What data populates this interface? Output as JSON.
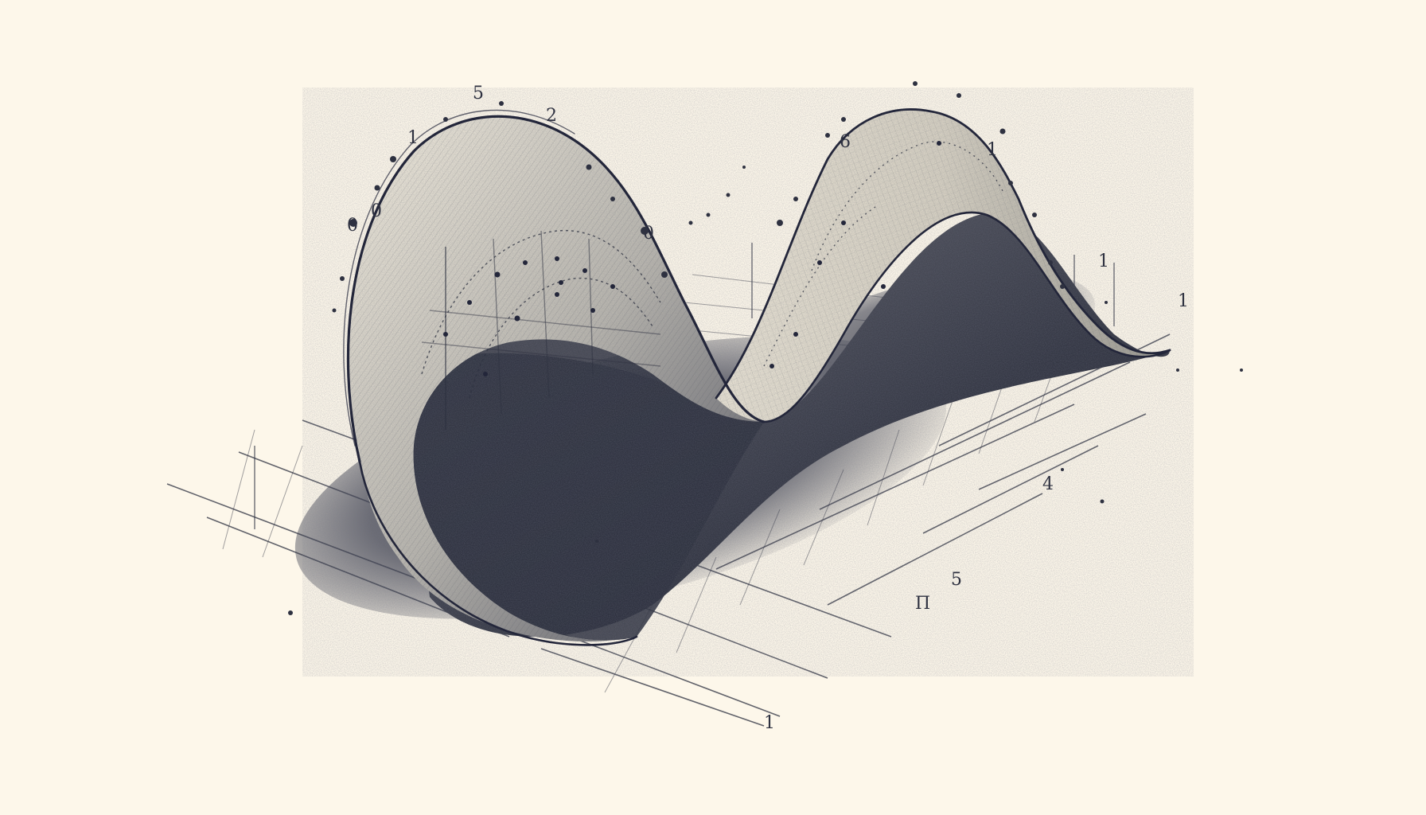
{
  "illustration": {
    "subject": "",
    "background_color": "#fdf7ea",
    "ink_color": "#2e3140",
    "shadow_color": "#3a3d4d",
    "highlight_color": "#f4eedf"
  },
  "scribbles": [
    "5",
    "2",
    "1",
    "0",
    "0",
    "0",
    "6",
    "1",
    "1",
    "4",
    "1",
    "5",
    "Π",
    "1"
  ]
}
